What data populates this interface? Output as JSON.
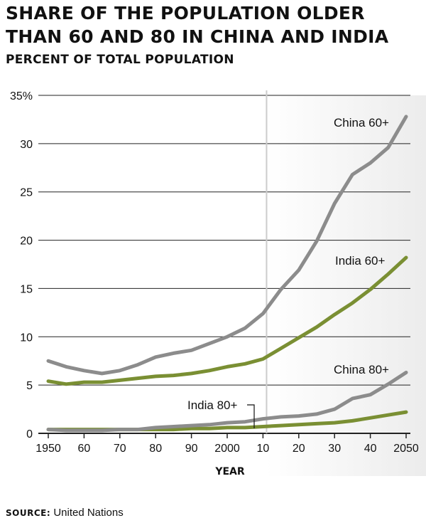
{
  "header": {
    "title": "SHARE OF THE POPULATION OLDER THAN 60 AND 80 IN CHINA AND INDIA",
    "subtitle": "PERCENT OF TOTAL POPULATION"
  },
  "footer": {
    "source_label": "SOURCE:",
    "source_text": "United Nations"
  },
  "colors": {
    "china": "#8c8c8c",
    "india": "#7a8f33",
    "grid": "#222222",
    "projection_divider": "#cccccc",
    "projection_shade": "#ececec"
  },
  "chart_data": {
    "type": "line",
    "title": "Share of the population older than 60 and 80 in China and India",
    "subtitle": "Percent of total population",
    "xlabel": "YEAR",
    "ylabel": "",
    "xlim": [
      1950,
      2050
    ],
    "ylim": [
      0,
      35
    ],
    "projection_start": 2011,
    "x_ticks": [
      1950,
      1960,
      1970,
      1980,
      1990,
      2000,
      2010,
      2020,
      2030,
      2040,
      2050
    ],
    "x_tick_labels": [
      "1950",
      "60",
      "70",
      "80",
      "90",
      "2000",
      "10",
      "20",
      "30",
      "40",
      "2050"
    ],
    "y_ticks": [
      0,
      5,
      10,
      15,
      20,
      25,
      30,
      35
    ],
    "y_tick_labels": [
      "0",
      "5",
      "10",
      "15",
      "20",
      "25",
      "30",
      "35%"
    ],
    "x": [
      1950,
      1955,
      1960,
      1965,
      1970,
      1975,
      1980,
      1985,
      1990,
      1995,
      2000,
      2005,
      2010,
      2015,
      2020,
      2025,
      2030,
      2035,
      2040,
      2045,
      2050
    ],
    "series": [
      {
        "name": "China 60+",
        "color_key": "china",
        "values": [
          7.5,
          6.9,
          6.5,
          6.2,
          6.5,
          7.1,
          7.9,
          8.3,
          8.6,
          9.3,
          10.0,
          10.9,
          12.4,
          14.9,
          16.9,
          19.9,
          23.8,
          26.8,
          28.0,
          29.6,
          32.8
        ]
      },
      {
        "name": "India 60+",
        "color_key": "india",
        "values": [
          5.4,
          5.1,
          5.3,
          5.3,
          5.5,
          5.7,
          5.9,
          6.0,
          6.2,
          6.5,
          6.9,
          7.2,
          7.7,
          8.8,
          9.9,
          11.0,
          12.3,
          13.5,
          14.9,
          16.5,
          18.2
        ]
      },
      {
        "name": "China 80+",
        "color_key": "china",
        "values": [
          0.4,
          0.3,
          0.3,
          0.3,
          0.4,
          0.4,
          0.6,
          0.7,
          0.8,
          0.9,
          1.1,
          1.2,
          1.5,
          1.7,
          1.8,
          2.0,
          2.5,
          3.6,
          4.0,
          5.1,
          6.3
        ]
      },
      {
        "name": "India 80+",
        "color_key": "india",
        "values": [
          0.4,
          0.4,
          0.4,
          0.4,
          0.4,
          0.4,
          0.4,
          0.4,
          0.5,
          0.5,
          0.6,
          0.6,
          0.7,
          0.8,
          0.9,
          1.0,
          1.1,
          1.3,
          1.6,
          1.9,
          2.2
        ]
      }
    ],
    "annotations": [
      {
        "series": "China 60+",
        "text": "China 60+"
      },
      {
        "series": "India 60+",
        "text": "India 60+"
      },
      {
        "series": "China 80+",
        "text": "China 80+"
      },
      {
        "series": "India 80+",
        "text": "India 80+"
      }
    ]
  }
}
